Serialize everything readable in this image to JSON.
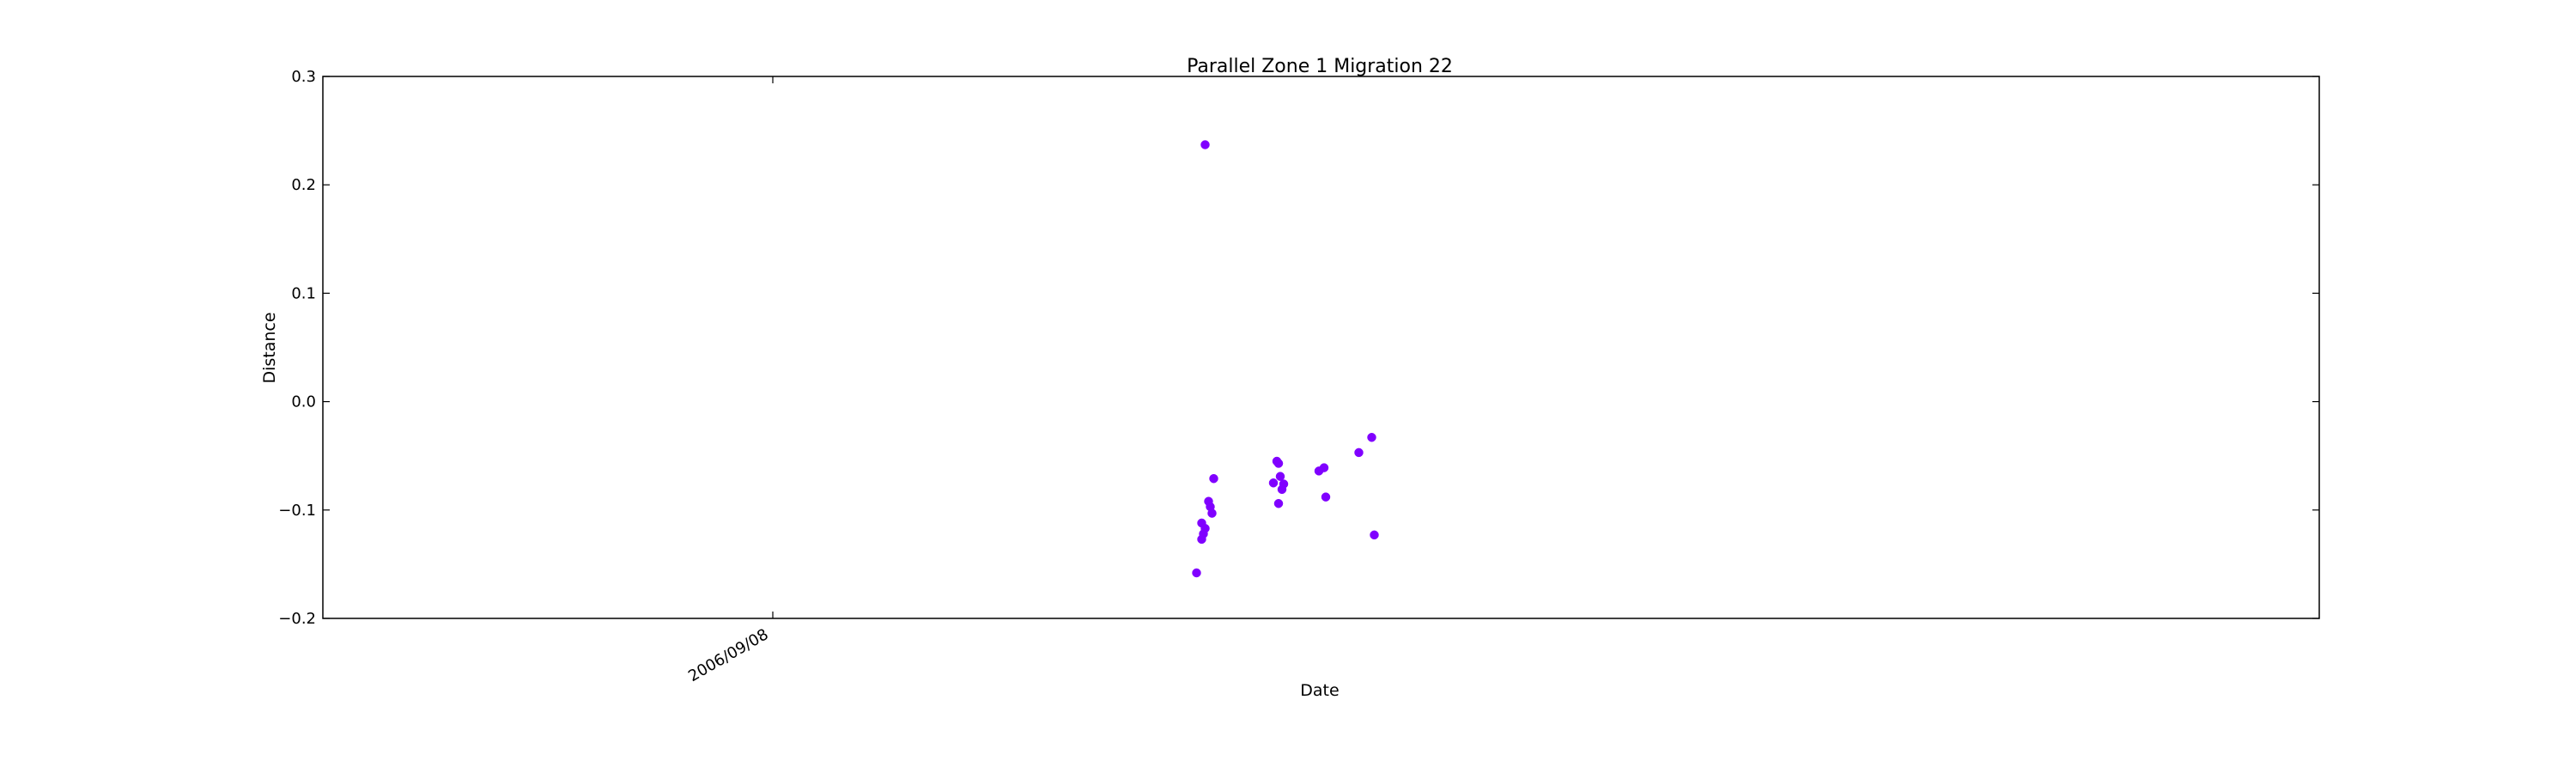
{
  "chart_data": {
    "type": "scatter",
    "title": "Parallel Zone 1 Migration 22",
    "xlabel": "Date",
    "ylabel": "Distance",
    "x_ticks": [
      "2006/09/08"
    ],
    "y_ticks": [
      "0.3",
      "0.2",
      "0.1",
      "0.0",
      "−0.1",
      "−0.2"
    ],
    "ylim": [
      -0.2,
      0.3
    ],
    "grid": false,
    "point_color": "#8000ff",
    "series": [
      {
        "points": [
          {
            "x": "2006/09/27",
            "y": 0.237
          },
          {
            "x": "2006/09/27",
            "y": -0.158
          },
          {
            "x": "2006/09/27",
            "y": -0.112
          },
          {
            "x": "2006/09/27",
            "y": -0.127
          },
          {
            "x": "2006/09/27",
            "y": -0.122
          },
          {
            "x": "2006/09/27",
            "y": -0.117
          },
          {
            "x": "2006/09/27",
            "y": -0.092
          },
          {
            "x": "2006/09/27",
            "y": -0.097
          },
          {
            "x": "2006/09/27",
            "y": -0.103
          },
          {
            "x": "2006/09/27",
            "y": -0.071
          },
          {
            "x": "2006/09/30",
            "y": -0.075
          },
          {
            "x": "2006/09/30",
            "y": -0.055
          },
          {
            "x": "2006/09/30",
            "y": -0.057
          },
          {
            "x": "2006/09/30",
            "y": -0.094
          },
          {
            "x": "2006/09/30",
            "y": -0.069
          },
          {
            "x": "2006/09/30",
            "y": -0.081
          },
          {
            "x": "2006/09/30",
            "y": -0.076
          },
          {
            "x": "2006/10/02",
            "y": -0.064
          },
          {
            "x": "2006/10/02",
            "y": -0.061
          },
          {
            "x": "2006/10/02",
            "y": -0.088
          },
          {
            "x": "2006/10/03",
            "y": -0.047
          },
          {
            "x": "2006/10/03",
            "y": -0.033
          },
          {
            "x": "2006/10/03",
            "y": -0.123
          }
        ]
      }
    ]
  }
}
